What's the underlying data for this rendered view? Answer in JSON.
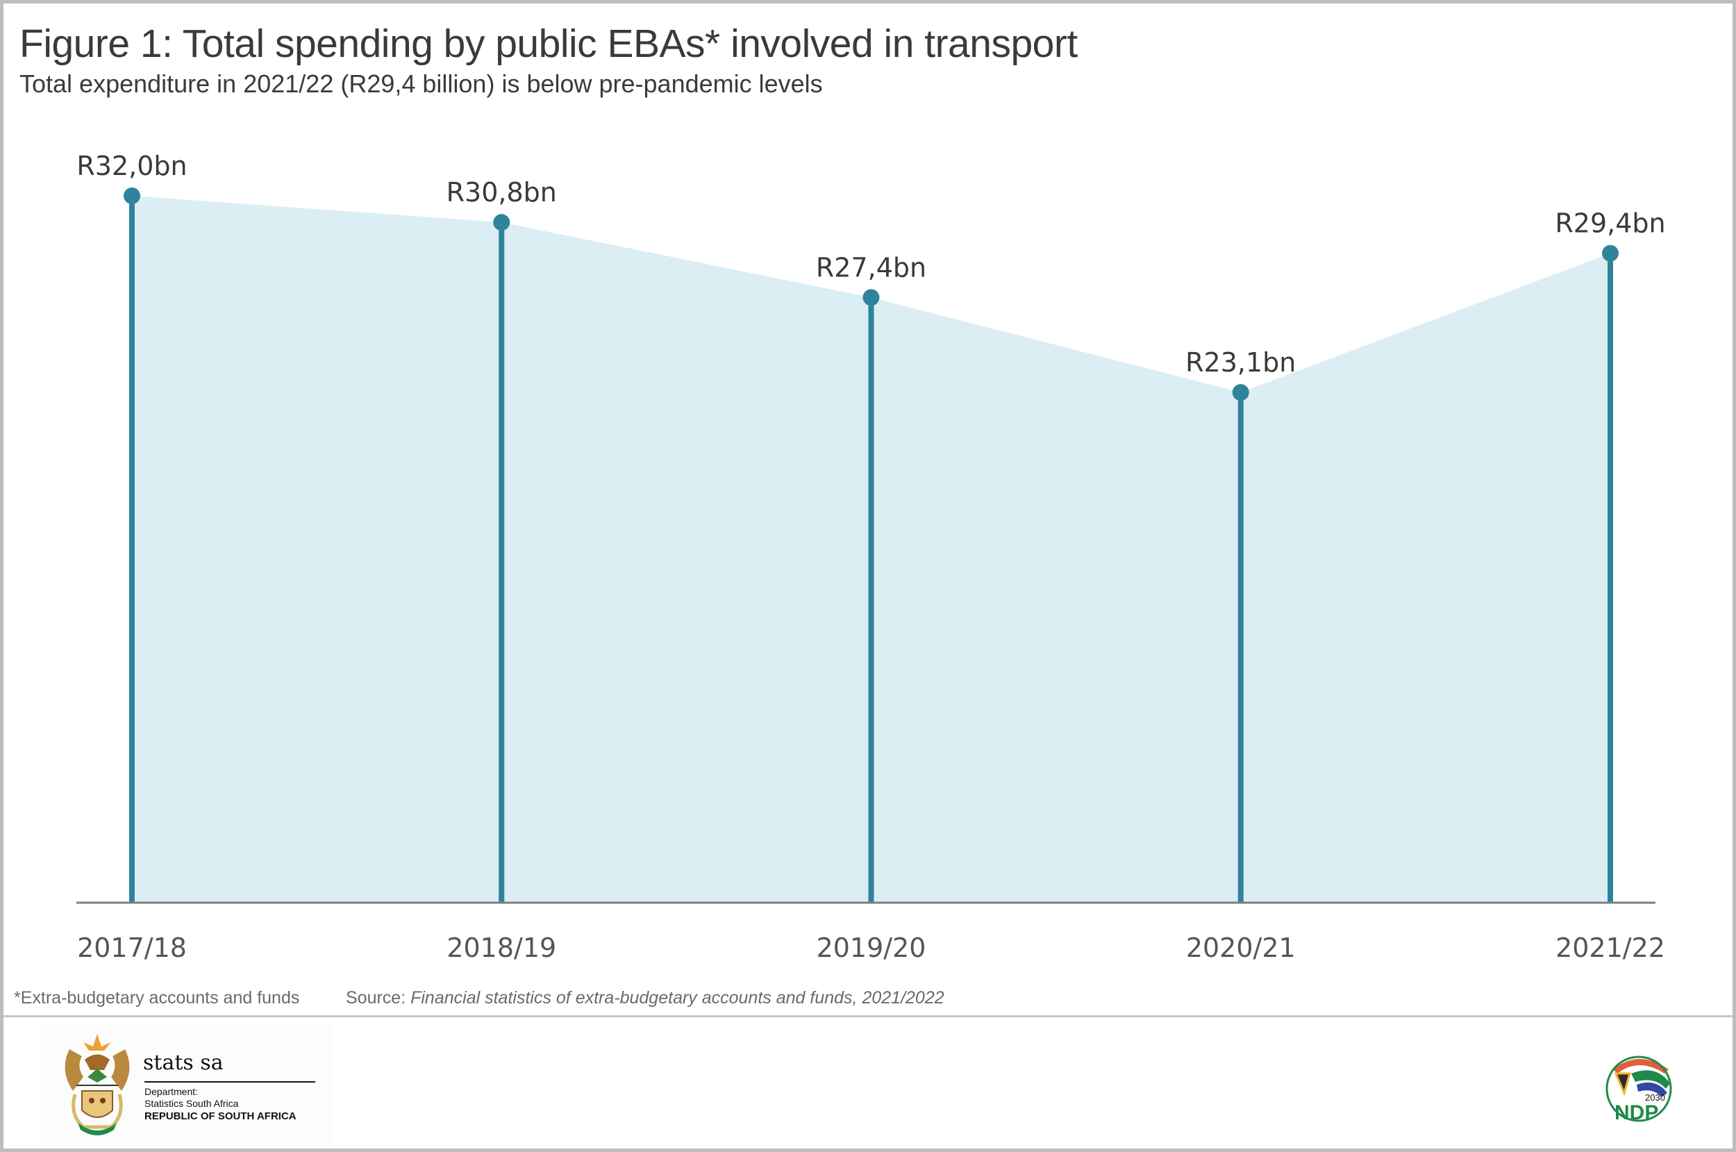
{
  "figure": {
    "title": "Figure 1: Total spending by public EBAs* involved in transport",
    "subtitle": "Total expenditure in 2021/22 (R29,4 billion) is below pre-pandemic levels",
    "footnote": "*Extra-budgetary accounts and funds",
    "source_label": "Source: ",
    "source_text": "Financial statistics of extra-budgetary accounts and funds, 2021/2022"
  },
  "colors": {
    "line": "#2e849b",
    "area_fill": "#dbeef4",
    "axis": "#7f7f7f",
    "text": "#3a3a3a"
  },
  "logos": {
    "statssa": {
      "brand": "stats sa",
      "dept_line1": "Department:",
      "dept_line2": "Statistics South Africa",
      "republic": "REPUBLIC OF SOUTH AFRICA",
      "icon": "coat-of-arms-icon"
    },
    "ndp": {
      "year": "2030",
      "text": "NDP",
      "icon": "ndp-logo-icon"
    }
  },
  "chart_data": {
    "type": "area",
    "title": "Figure 1: Total spending by public EBAs* involved in transport",
    "subtitle": "Total expenditure in 2021/22 (R29,4 billion) is below pre-pandemic levels",
    "xlabel": "",
    "ylabel": "",
    "categories": [
      "2017/18",
      "2018/19",
      "2019/20",
      "2020/21",
      "2021/22"
    ],
    "series": [
      {
        "name": "Total spending (R billion)",
        "values": [
          32.0,
          30.8,
          27.4,
          23.1,
          29.4
        ],
        "labels": [
          "R32,0bn",
          "R30,8bn",
          "R27,4bn",
          "R23,1bn",
          "R29,4bn"
        ]
      }
    ],
    "ylim": [
      0,
      32
    ],
    "grid": false,
    "legend": "none",
    "style": "area with lollipop stems"
  }
}
